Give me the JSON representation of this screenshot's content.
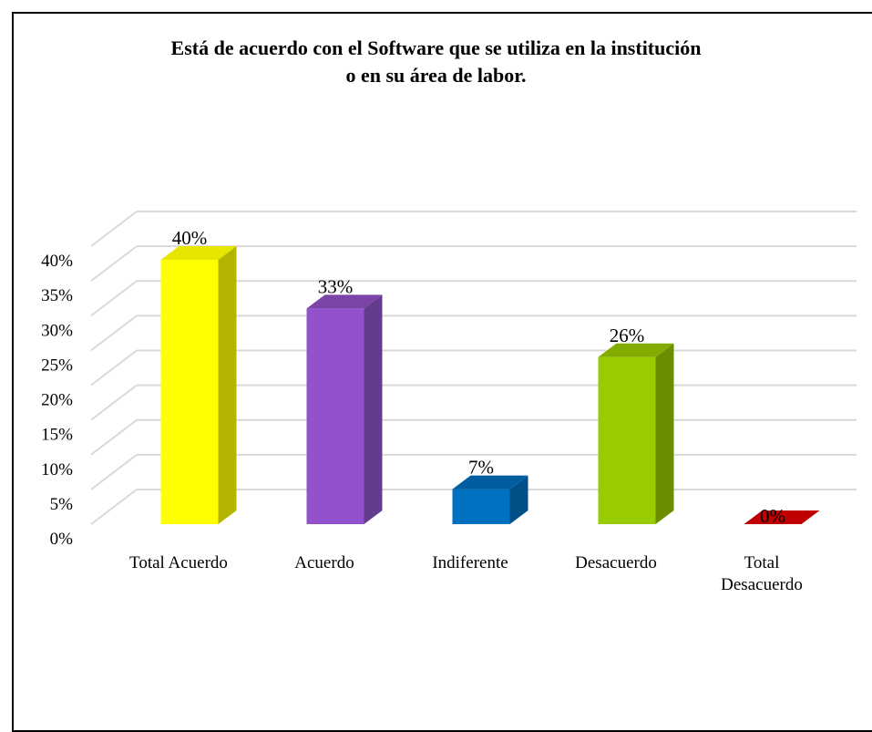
{
  "chart_data": {
    "type": "bar",
    "title_lines": [
      "Está de acuerdo con el Software que se utiliza en la institución",
      "o en su área de labor."
    ],
    "categories": [
      [
        "Total Acuerdo"
      ],
      [
        "Acuerdo"
      ],
      [
        "Indiferente"
      ],
      [
        "Desacuerdo"
      ],
      [
        "Total",
        "Desacuerdo"
      ]
    ],
    "values": [
      40,
      33,
      7,
      26,
      0
    ],
    "data_labels": [
      "40%",
      "33%",
      "7%",
      "26%",
      "0%"
    ],
    "y_ticks": [
      0,
      5,
      10,
      15,
      20,
      25,
      30,
      35,
      40
    ],
    "y_tick_labels": [
      "0%",
      "5%",
      "10%",
      "15%",
      "20%",
      "25%",
      "30%",
      "35%",
      "40%"
    ],
    "ylim": [
      0,
      40
    ],
    "grid": true,
    "legend": "none",
    "bar_style": "3d",
    "colors": [
      {
        "front": "#ffff00",
        "side": "#b4b400",
        "top": "#e6e600"
      },
      {
        "front": "#9352cc",
        "side": "#643c8c",
        "top": "#7a44a8"
      },
      {
        "front": "#0070c0",
        "side": "#004f86",
        "top": "#005ea0"
      },
      {
        "front": "#99cc00",
        "side": "#6b8e00",
        "top": "#82ad00"
      },
      {
        "front": "#c00000",
        "side": "#8a0000",
        "top": "#c00000"
      }
    ]
  }
}
